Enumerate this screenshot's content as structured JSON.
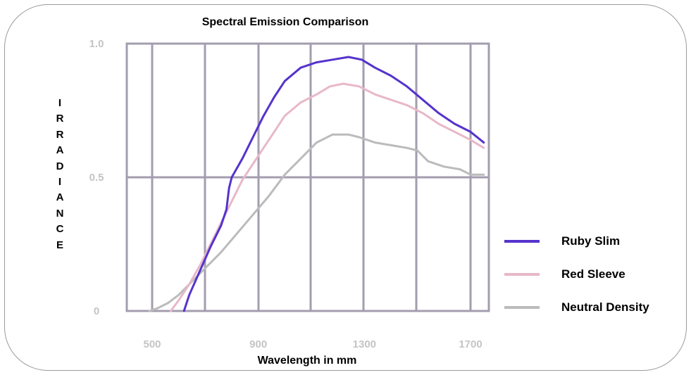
{
  "chart_data": {
    "type": "line",
    "title": "Spectral Emission Comparison",
    "xlabel": "Wavelength in mm",
    "ylabel": "IRRADIANCE",
    "xlim": [
      300,
      1750
    ],
    "ylim": [
      0,
      1.0
    ],
    "x_ticks": [
      500,
      900,
      1300,
      1700
    ],
    "y_ticks": [
      0,
      0.5,
      1.0
    ],
    "y_tick_labels": [
      "0",
      "0.5",
      "1.0"
    ],
    "grid": true,
    "legend_position": "right",
    "series": [
      {
        "name": "Ruby Slim",
        "color": "#5533cc",
        "x": [
          620,
          640,
          680,
          720,
          760,
          780,
          790,
          800,
          840,
          880,
          920,
          960,
          1000,
          1060,
          1120,
          1180,
          1240,
          1290,
          1340,
          1400,
          1460,
          1520,
          1580,
          1640,
          1700,
          1750
        ],
        "y": [
          0.0,
          0.06,
          0.15,
          0.24,
          0.32,
          0.38,
          0.46,
          0.5,
          0.57,
          0.65,
          0.73,
          0.8,
          0.86,
          0.91,
          0.93,
          0.94,
          0.95,
          0.94,
          0.91,
          0.88,
          0.84,
          0.79,
          0.74,
          0.7,
          0.67,
          0.63
        ]
      },
      {
        "name": "Red Sleeve",
        "color": "#e8b8c8",
        "x": [
          570,
          600,
          640,
          680,
          720,
          760,
          800,
          840,
          880,
          920,
          960,
          1000,
          1060,
          1120,
          1170,
          1220,
          1280,
          1340,
          1400,
          1460,
          1520,
          1580,
          1640,
          1700,
          1750
        ],
        "y": [
          0.0,
          0.04,
          0.1,
          0.17,
          0.25,
          0.33,
          0.41,
          0.49,
          0.55,
          0.61,
          0.67,
          0.73,
          0.78,
          0.81,
          0.84,
          0.85,
          0.84,
          0.81,
          0.79,
          0.77,
          0.74,
          0.7,
          0.67,
          0.64,
          0.61
        ]
      },
      {
        "name": "Neutral Density",
        "color": "#bbbbbb",
        "x": [
          490,
          520,
          560,
          600,
          640,
          700,
          760,
          820,
          880,
          940,
          1000,
          1060,
          1120,
          1180,
          1240,
          1280,
          1340,
          1400,
          1460,
          1500,
          1540,
          1600,
          1660,
          1700,
          1750
        ],
        "y": [
          0.0,
          0.01,
          0.03,
          0.06,
          0.1,
          0.16,
          0.22,
          0.29,
          0.36,
          0.43,
          0.51,
          0.57,
          0.63,
          0.66,
          0.66,
          0.65,
          0.63,
          0.62,
          0.61,
          0.6,
          0.56,
          0.54,
          0.53,
          0.51,
          0.51
        ]
      }
    ]
  }
}
